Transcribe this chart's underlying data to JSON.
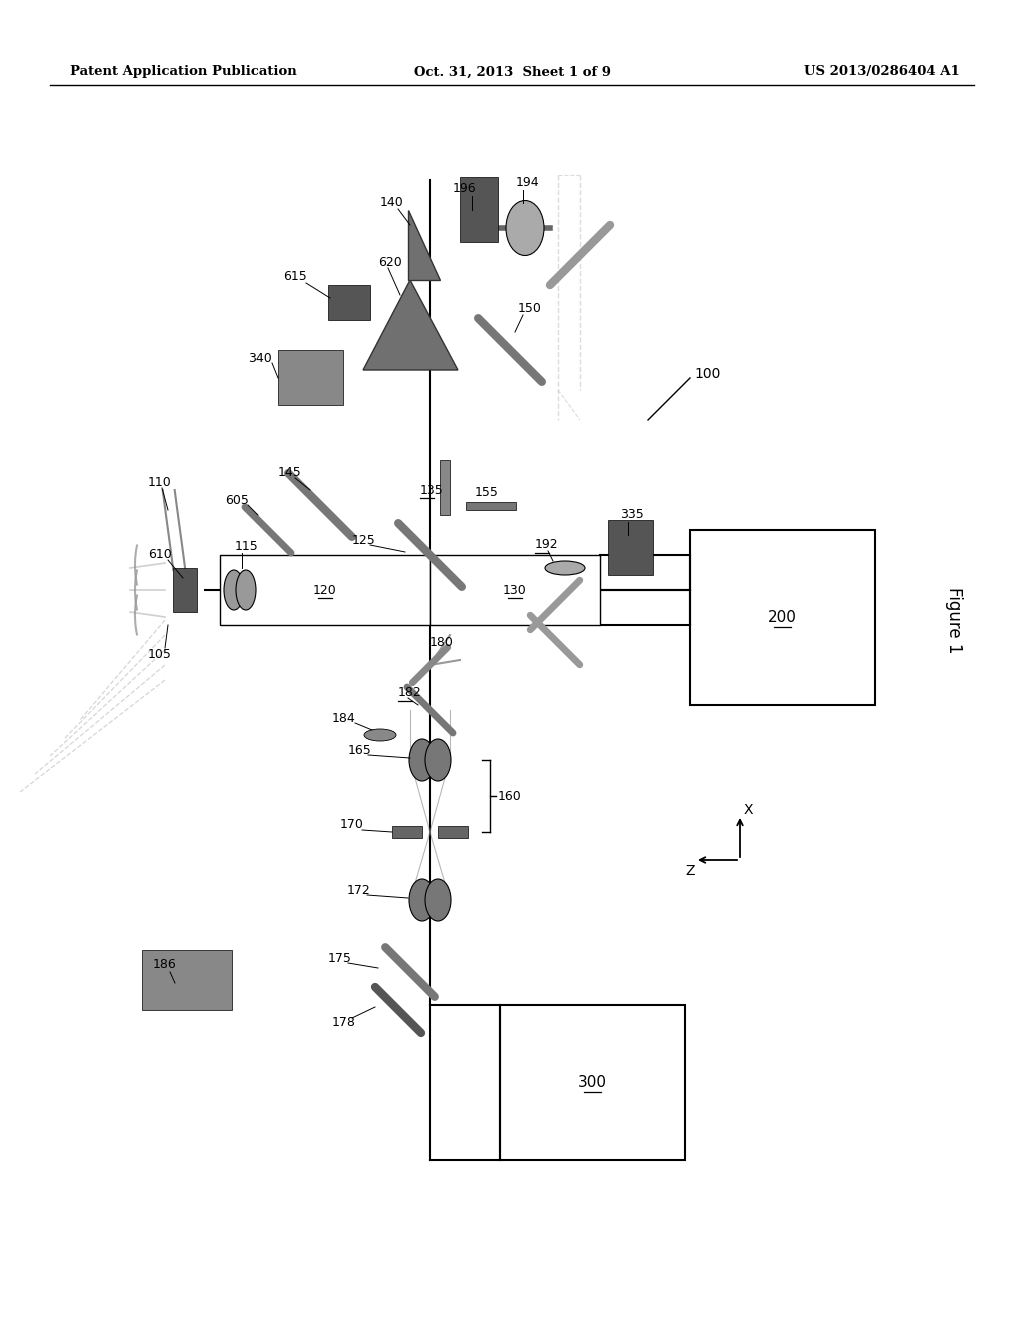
{
  "bg_color": "#ffffff",
  "header_left": "Patent Application Publication",
  "header_mid": "Oct. 31, 2013  Sheet 1 of 9",
  "header_right": "US 2013/0286404 A1",
  "figsize": [
    10.24,
    13.2
  ],
  "dpi": 100,
  "dark_gray": "#555555",
  "mid_gray": "#888888",
  "light_gray": "#bbbbbb",
  "dark2": "#444444"
}
